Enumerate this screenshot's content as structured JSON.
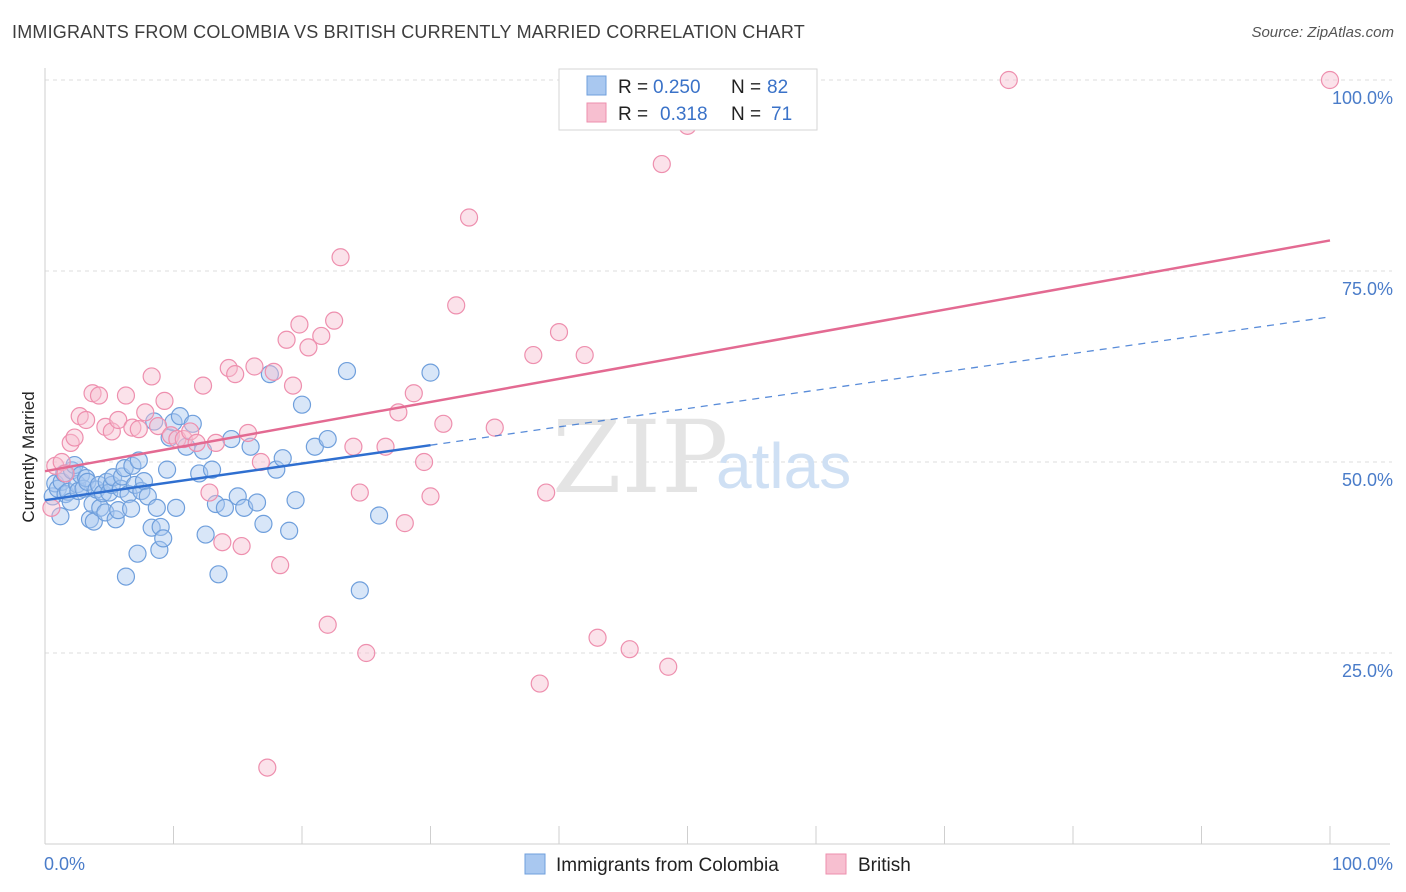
{
  "header": {
    "title": "IMMIGRANTS FROM COLOMBIA VS BRITISH CURRENTLY MARRIED CORRELATION CHART",
    "source": "Source: ZipAtlas.com"
  },
  "watermark": {
    "zip": "ZIP",
    "atlas": "atlas"
  },
  "legend": {
    "r_label": "R =",
    "n_label": "N =",
    "items": [
      {
        "r": "0.250",
        "n": "82",
        "color": "#a9c8f0"
      },
      {
        "r": "0.318",
        "n": "71",
        "color": "#f7bfd0"
      }
    ]
  },
  "bottom_legend": [
    "Immigrants from Colombia",
    "British"
  ],
  "chart_data": {
    "type": "scatter",
    "title": "IMMIGRANTS FROM COLOMBIA VS BRITISH CURRENTLY MARRIED CORRELATION CHART",
    "ylabel": "Currently Married",
    "xlabel": "",
    "xlim": [
      0,
      100
    ],
    "ylim": [
      0,
      100
    ],
    "x_ticks": [
      "0.0%",
      "100.0%"
    ],
    "y_ticks": [
      "25.0%",
      "50.0%",
      "75.0%",
      "100.0%"
    ],
    "y_tick_values": [
      25,
      50,
      75,
      100
    ],
    "grid": "horizontal dashed",
    "legend_position": "top-center",
    "series": [
      {
        "name": "Immigrants from Colombia",
        "color": "#a9c8f0",
        "stroke": "#6f9fdc",
        "trend": {
          "x0": 0,
          "y0": 45.0,
          "x1": 30,
          "y1": 52.2,
          "dash_to_x": 100,
          "dash_to_y": 69.0,
          "color": "#2f6fd0"
        },
        "points": [
          [
            0.6,
            45.5
          ],
          [
            0.8,
            47.2
          ],
          [
            1.0,
            46.5
          ],
          [
            1.2,
            42.9
          ],
          [
            1.3,
            47.4
          ],
          [
            1.5,
            48.5
          ],
          [
            1.6,
            45.8
          ],
          [
            1.8,
            46.1
          ],
          [
            2.0,
            44.8
          ],
          [
            2.1,
            48.9
          ],
          [
            2.3,
            49.6
          ],
          [
            2.5,
            47.1
          ],
          [
            2.6,
            46.2
          ],
          [
            2.8,
            48.3
          ],
          [
            3.0,
            46.5
          ],
          [
            3.2,
            47.9
          ],
          [
            3.3,
            47.4
          ],
          [
            3.5,
            42.5
          ],
          [
            3.7,
            44.5
          ],
          [
            3.8,
            42.2
          ],
          [
            4.0,
            46.4
          ],
          [
            4.2,
            47.0
          ],
          [
            4.3,
            44.0
          ],
          [
            4.5,
            45.9
          ],
          [
            4.7,
            43.4
          ],
          [
            4.8,
            47.4
          ],
          [
            5.0,
            46.0
          ],
          [
            5.2,
            47.0
          ],
          [
            5.3,
            48.0
          ],
          [
            5.5,
            42.5
          ],
          [
            5.7,
            43.7
          ],
          [
            5.9,
            46.5
          ],
          [
            6.0,
            48.1
          ],
          [
            6.2,
            49.2
          ],
          [
            6.3,
            35.0
          ],
          [
            6.5,
            45.8
          ],
          [
            6.7,
            43.9
          ],
          [
            6.8,
            49.5
          ],
          [
            7.0,
            47.0
          ],
          [
            7.2,
            38.0
          ],
          [
            7.3,
            50.2
          ],
          [
            7.5,
            46.2
          ],
          [
            7.7,
            47.5
          ],
          [
            8.0,
            45.5
          ],
          [
            8.3,
            41.4
          ],
          [
            8.5,
            55.3
          ],
          [
            8.7,
            44.0
          ],
          [
            8.9,
            38.5
          ],
          [
            9.0,
            41.5
          ],
          [
            9.2,
            40.0
          ],
          [
            9.5,
            49.0
          ],
          [
            9.7,
            53.2
          ],
          [
            10.0,
            55.2
          ],
          [
            10.2,
            44.0
          ],
          [
            10.5,
            56.0
          ],
          [
            11.0,
            52.0
          ],
          [
            11.5,
            55.0
          ],
          [
            12.0,
            48.5
          ],
          [
            12.3,
            51.5
          ],
          [
            12.5,
            40.5
          ],
          [
            13.0,
            49.0
          ],
          [
            13.3,
            44.5
          ],
          [
            13.5,
            35.3
          ],
          [
            14.0,
            44.0
          ],
          [
            14.5,
            53.0
          ],
          [
            15.0,
            45.5
          ],
          [
            15.5,
            44.0
          ],
          [
            16.0,
            52.0
          ],
          [
            16.5,
            44.7
          ],
          [
            17.0,
            41.9
          ],
          [
            17.5,
            61.5
          ],
          [
            18.0,
            49.0
          ],
          [
            18.5,
            50.5
          ],
          [
            19.0,
            41.0
          ],
          [
            19.5,
            45.0
          ],
          [
            20.0,
            57.5
          ],
          [
            21.0,
            52.0
          ],
          [
            22.0,
            53.0
          ],
          [
            23.5,
            61.9
          ],
          [
            24.5,
            33.2
          ],
          [
            26.0,
            43.0
          ],
          [
            30.0,
            61.7
          ]
        ]
      },
      {
        "name": "British",
        "color": "#f7bfd0",
        "stroke": "#ee8fae",
        "trend": {
          "x0": 0,
          "y0": 48.8,
          "x1": 100,
          "y1": 79.0,
          "color": "#e36a92"
        },
        "points": [
          [
            0.5,
            44.0
          ],
          [
            0.8,
            49.5
          ],
          [
            1.3,
            50.0
          ],
          [
            1.6,
            48.5
          ],
          [
            2.0,
            52.5
          ],
          [
            2.3,
            53.2
          ],
          [
            2.7,
            56.0
          ],
          [
            3.2,
            55.5
          ],
          [
            3.7,
            59.0
          ],
          [
            4.2,
            58.7
          ],
          [
            4.7,
            54.6
          ],
          [
            5.2,
            54.0
          ],
          [
            5.7,
            55.5
          ],
          [
            6.3,
            58.7
          ],
          [
            6.8,
            54.5
          ],
          [
            7.3,
            54.3
          ],
          [
            7.8,
            56.5
          ],
          [
            8.3,
            61.2
          ],
          [
            8.8,
            54.7
          ],
          [
            9.3,
            58.0
          ],
          [
            9.8,
            53.5
          ],
          [
            10.3,
            53.0
          ],
          [
            10.8,
            53.0
          ],
          [
            11.3,
            54.0
          ],
          [
            11.8,
            52.5
          ],
          [
            12.3,
            60.0
          ],
          [
            12.8,
            46.0
          ],
          [
            13.3,
            52.5
          ],
          [
            13.8,
            39.5
          ],
          [
            14.3,
            62.3
          ],
          [
            14.8,
            61.5
          ],
          [
            15.3,
            39.0
          ],
          [
            15.8,
            53.8
          ],
          [
            16.3,
            62.5
          ],
          [
            16.8,
            50.0
          ],
          [
            17.3,
            10.0
          ],
          [
            17.8,
            61.8
          ],
          [
            18.3,
            36.5
          ],
          [
            18.8,
            66.0
          ],
          [
            19.3,
            60.0
          ],
          [
            19.8,
            68.0
          ],
          [
            20.5,
            65.0
          ],
          [
            21.5,
            66.5
          ],
          [
            22.0,
            28.7
          ],
          [
            22.5,
            68.5
          ],
          [
            23.0,
            76.8
          ],
          [
            24.0,
            52.0
          ],
          [
            24.5,
            46.0
          ],
          [
            25.0,
            25.0
          ],
          [
            26.5,
            52.0
          ],
          [
            27.5,
            56.5
          ],
          [
            28.0,
            42.0
          ],
          [
            28.7,
            59.0
          ],
          [
            29.5,
            50.0
          ],
          [
            30.0,
            45.5
          ],
          [
            31.0,
            55.0
          ],
          [
            32.0,
            70.5
          ],
          [
            33.0,
            82.0
          ],
          [
            35.0,
            54.5
          ],
          [
            38.0,
            64.0
          ],
          [
            38.5,
            21.0
          ],
          [
            39.0,
            46.0
          ],
          [
            40.0,
            67.0
          ],
          [
            42.0,
            64.0
          ],
          [
            43.0,
            27.0
          ],
          [
            45.5,
            25.5
          ],
          [
            48.0,
            89.0
          ],
          [
            48.5,
            23.2
          ],
          [
            75.0,
            100.0
          ],
          [
            100.0,
            100.0
          ],
          [
            50.0,
            94.0
          ]
        ]
      }
    ]
  }
}
